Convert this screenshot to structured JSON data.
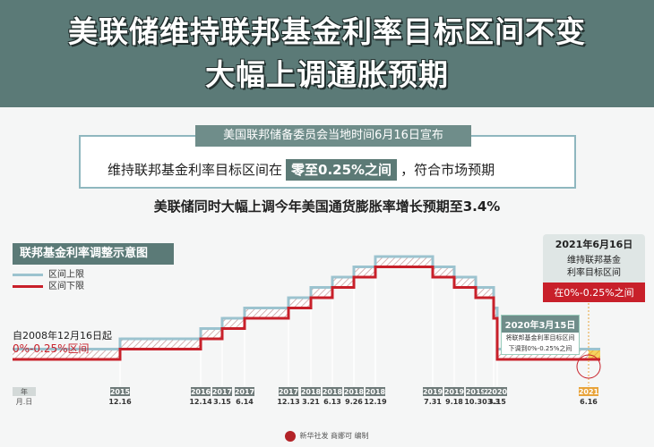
{
  "header": {
    "title_line1": "美联储维持联邦基金利率目标区间不变",
    "title_line2": "大幅上调通胀预期",
    "color": "#5b7a77"
  },
  "announcement": {
    "tab": "美国联邦储备委员会当地时间6月16日宣布",
    "pre": "维持联邦基金利率目标区间在",
    "highlight": "零至0.25%之间",
    "post": "，符合市场预期"
  },
  "subtitle": "美联储同时大幅上调今年美国通货膨胀率增长预期至3.4%",
  "chart_title": "联邦基金利率调整示意图",
  "legend": {
    "upper": "区间上限",
    "lower": "区间下限",
    "upper_color": "#9cc3cf",
    "lower_color": "#c8202a"
  },
  "note_2008": {
    "line1": "自2008年12月16日起",
    "line2": "0%-0.25%区间"
  },
  "callout_2021": {
    "date": "2021年6月16日",
    "desc1": "维持联邦基金",
    "desc2": "利率目标区间",
    "range": "在0%-0.25%之间"
  },
  "callout_2020": {
    "date": "2020年3月15日",
    "desc1": "将联邦基金利率目标区间",
    "desc2": "下调到0%-0.25%之间"
  },
  "axis": {
    "year_label": "年",
    "day_label": "月.日"
  },
  "chart_data": {
    "type": "line",
    "ticks": [
      {
        "year": "2015",
        "date": "12.16"
      },
      {
        "year": "2016",
        "date": "12.14"
      },
      {
        "year": "2017",
        "date": "3.15"
      },
      {
        "year": "2017",
        "date": "6.14"
      },
      {
        "year": "2017",
        "date": "12.13"
      },
      {
        "year": "2018",
        "date": "3.21"
      },
      {
        "year": "2018",
        "date": "6.13"
      },
      {
        "year": "2018",
        "date": "9.26"
      },
      {
        "year": "2018",
        "date": "12.19"
      },
      {
        "year": "2019",
        "date": "7.31"
      },
      {
        "year": "2019",
        "date": "9.18"
      },
      {
        "year": "2019",
        "date": "10.30"
      },
      {
        "year": "2020",
        "date": "3.3"
      },
      {
        "year": "2020",
        "date": "3.15"
      },
      {
        "year": "2021",
        "date": "6.16"
      }
    ],
    "series": [
      {
        "name": "区间上限",
        "values": [
          0.25,
          0.5,
          0.75,
          1.0,
          1.25,
          1.5,
          1.75,
          2.0,
          2.25,
          2.5,
          2.25,
          2.0,
          1.75,
          1.25,
          0.25,
          0.25
        ]
      },
      {
        "name": "区间下限",
        "values": [
          0,
          0.25,
          0.5,
          0.75,
          1.0,
          1.25,
          1.5,
          1.75,
          2.0,
          2.25,
          2.0,
          1.75,
          1.5,
          1.0,
          0,
          0
        ]
      }
    ]
  },
  "footer": "新华社发 商娜可 编制"
}
